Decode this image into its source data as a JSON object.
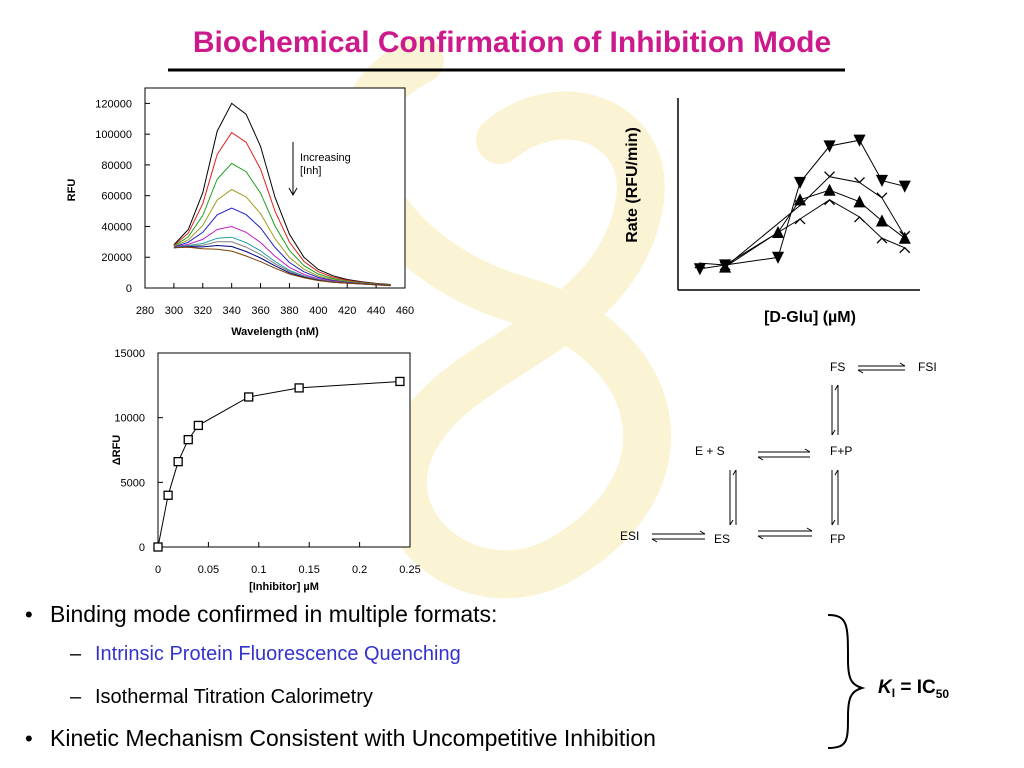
{
  "title": "Biochemical Confirmation of Inhibition Mode",
  "chart_data": [
    {
      "type": "line",
      "x_label": "Wavelength (nM)",
      "y_label": "RFU",
      "annotation": [
        "Increasing",
        "[Inh]"
      ],
      "x": [
        300,
        310,
        320,
        330,
        340,
        350,
        360,
        370,
        380,
        390,
        400,
        410,
        420,
        430,
        440,
        450
      ],
      "xlim": [
        280,
        460
      ],
      "xticks": [
        280,
        300,
        320,
        340,
        360,
        380,
        400,
        420,
        440,
        460
      ],
      "ylim": [
        0,
        130000
      ],
      "yticks": [
        0,
        20000,
        40000,
        60000,
        80000,
        100000,
        120000
      ],
      "series": [
        {
          "color": "#000000",
          "values": [
            28000,
            38000,
            62000,
            102000,
            120000,
            113000,
            92000,
            59000,
            35000,
            20000,
            12000,
            8000,
            5500,
            4000,
            3000,
            2300
          ]
        },
        {
          "color": "#e02020",
          "values": [
            27600,
            35700,
            54800,
            86800,
            101000,
            94800,
            77200,
            49900,
            29900,
            17300,
            10600,
            7100,
            5000,
            3700,
            2800,
            2100
          ]
        },
        {
          "color": "#20a020",
          "values": [
            27200,
            33300,
            47200,
            70800,
            81000,
            75600,
            61600,
            40300,
            24500,
            14500,
            9100,
            6200,
            4500,
            3400,
            2600,
            2000
          ]
        },
        {
          "color": "#a0a020",
          "values": [
            26900,
            31300,
            40700,
            57200,
            64000,
            59200,
            48300,
            32100,
            19900,
            12200,
            7800,
            5500,
            4100,
            3200,
            2400,
            1900
          ]
        },
        {
          "color": "#2020c0",
          "values": [
            26600,
            29800,
            36200,
            47600,
            52000,
            47700,
            39000,
            26400,
            16600,
            10500,
            6900,
            4900,
            3800,
            3000,
            2300,
            1800
          ]
        },
        {
          "color": "#c020c0",
          "values": [
            26400,
            28400,
            31600,
            38000,
            40000,
            36200,
            29600,
            20600,
            13400,
            8800,
            6000,
            4400,
            3500,
            2800,
            2200,
            1700
          ]
        },
        {
          "color": "#20a0a0",
          "values": [
            26300,
            27600,
            28900,
            32400,
            33000,
            29500,
            24100,
            17200,
            11500,
            7800,
            5500,
            4100,
            3300,
            2700,
            2100,
            1600
          ]
        },
        {
          "color": "#808080",
          "values": [
            26200,
            27200,
            27800,
            30000,
            30000,
            26600,
            21800,
            15800,
            10700,
            7400,
            5300,
            4000,
            3300,
            2700,
            2100,
            1600
          ]
        },
        {
          "color": "#000080",
          "values": [
            26100,
            26800,
            26700,
            27600,
            27000,
            23700,
            19500,
            14400,
            9900,
            7000,
            5000,
            3800,
            3200,
            2600,
            2100,
            1600
          ]
        },
        {
          "color": "#804000",
          "values": [
            26100,
            26500,
            25500,
            25200,
            24000,
            20800,
            17100,
            12900,
            9100,
            6600,
            4800,
            3700,
            3100,
            2600,
            2000,
            1500
          ]
        }
      ]
    },
    {
      "type": "scatter",
      "x_label": "[D-Glu] (µM)",
      "y_label": "Rate (RFU/min)",
      "xscale": "log",
      "xlim": [
        0.1,
        1000
      ],
      "ylim": [
        0,
        100
      ],
      "series": [
        {
          "marker": "triangle-down",
          "color": "#000000",
          "x": [
            0.23,
            0.6,
            4.5,
            10.4,
            32,
            100,
            235,
            560
          ],
          "values": [
            11,
            13,
            17,
            56,
            75,
            78,
            57,
            54
          ]
        },
        {
          "marker": "triangle-up",
          "color": "#000000",
          "x": [
            0.6,
            4.5,
            10.4,
            32,
            100,
            235,
            560
          ],
          "values": [
            12,
            30,
            47,
            52,
            46,
            36,
            27
          ]
        },
        {
          "marker": "chevron",
          "color": "#000000",
          "x": [
            0.6,
            10.4,
            32,
            100,
            235,
            560
          ],
          "values": [
            12,
            44,
            59,
            56,
            48,
            28
          ]
        },
        {
          "marker": "caret",
          "color": "#000000",
          "x": [
            0.23,
            0.6,
            10.4,
            32,
            100,
            235,
            560
          ],
          "values": [
            14,
            13,
            37,
            47,
            38,
            27,
            22
          ]
        }
      ]
    },
    {
      "type": "scatter",
      "x_label": "[Inhibitor] µM",
      "y_label": "ΔRFU",
      "xlim": [
        0,
        0.25
      ],
      "xticks": [
        0,
        0.05,
        0.1,
        0.15,
        0.2,
        0.25
      ],
      "ylim": [
        0,
        15000
      ],
      "yticks": [
        0,
        5000,
        10000,
        15000
      ],
      "series": [
        {
          "marker": "square",
          "color": "#000000",
          "x": [
            0,
            0.01,
            0.02,
            0.03,
            0.04,
            0.09,
            0.14,
            0.24
          ],
          "values": [
            0,
            4000,
            6600,
            8300,
            9400,
            11600,
            12300,
            12800
          ]
        }
      ]
    }
  ],
  "scheme": {
    "nodes": [
      {
        "label": "FS"
      },
      {
        "label": "FSI"
      },
      {
        "label": "E + S"
      },
      {
        "label": "F+P"
      },
      {
        "label": "ESI"
      },
      {
        "label": "ES"
      },
      {
        "label": "FP"
      }
    ]
  },
  "bullets": [
    {
      "level": 1,
      "text": "Binding mode confirmed in multiple formats:"
    },
    {
      "level": 2,
      "text": "Intrinsic Protein Fluorescence Quenching",
      "color": "#3333cc"
    },
    {
      "level": 2,
      "text": "Isothermal Titration Calorimetry"
    },
    {
      "level": 1,
      "text": "Kinetic Mechanism Consistent with Uncompetitive Inhibition"
    }
  ],
  "result": {
    "k": "K",
    "k_sub": "I",
    "eq": " = IC",
    "eq_sub": "50"
  }
}
